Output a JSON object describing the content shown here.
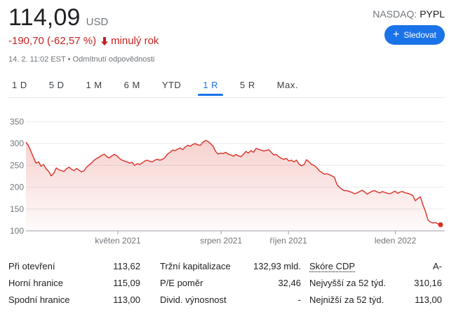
{
  "quote": {
    "price": "114,09",
    "currency": "USD",
    "change": "-190,70 (-62,57 %)",
    "change_period": "minulý rok",
    "timestamp": "14. 2. 11:02 EST",
    "disclaimer": "Odmítnutí odpovědnosti",
    "exchange_prefix": "NASDAQ:",
    "symbol": "PYPL",
    "follow_label": "Sledovat",
    "negative_color": "#c5221f",
    "accent_color": "#1a73e8"
  },
  "ranges": {
    "tabs": [
      "1 D",
      "5 D",
      "1 M",
      "6 M",
      "YTD",
      "1 R",
      "5 R",
      "Max."
    ],
    "active": "1 R"
  },
  "chart_data": {
    "type": "area",
    "yticks": [
      350,
      300,
      250,
      200,
      150,
      100
    ],
    "ylim": [
      100,
      350
    ],
    "xticks": [
      {
        "label": "květen 2021",
        "x": 0.221
      },
      {
        "label": "srpen 2021",
        "x": 0.469
      },
      {
        "label": "říjen 2021",
        "x": 0.631
      },
      {
        "label": "leden 2022",
        "x": 0.888
      }
    ],
    "line_color": "#d93025",
    "values": [
      303,
      295,
      282,
      268,
      255,
      258,
      248,
      252,
      242,
      236,
      226,
      232,
      244,
      240,
      238,
      236,
      242,
      246,
      241,
      238,
      243,
      239,
      235,
      238,
      246,
      251,
      256,
      262,
      266,
      269,
      273,
      276,
      270,
      267,
      272,
      275,
      272,
      266,
      262,
      260,
      258,
      255,
      257,
      250,
      254,
      252,
      256,
      260,
      262,
      259,
      258,
      262,
      264,
      262,
      264,
      268,
      276,
      280,
      285,
      284,
      287,
      290,
      286,
      292,
      296,
      294,
      298,
      300,
      297,
      296,
      303,
      307,
      305,
      300,
      294,
      282,
      276,
      278,
      277,
      280,
      276,
      274,
      271,
      275,
      272,
      270,
      275,
      282,
      278,
      284,
      280,
      289,
      287,
      285,
      283,
      284,
      286,
      280,
      274,
      275,
      270,
      266,
      264,
      266,
      260,
      262,
      258,
      262,
      253,
      249,
      252,
      263,
      258,
      252,
      250,
      245,
      238,
      234,
      230,
      231,
      229,
      226,
      223,
      206,
      200,
      195,
      192,
      192,
      190,
      188,
      185,
      187,
      190,
      193,
      189,
      184,
      188,
      191,
      192,
      189,
      187,
      190,
      188,
      186,
      185,
      188,
      191,
      186,
      189,
      190,
      187,
      186,
      184,
      181,
      169,
      174,
      178,
      160,
      145,
      125,
      120,
      118,
      119,
      116,
      114
    ]
  },
  "stats": {
    "rows": [
      [
        {
          "label": "Při otevření",
          "value": "113,62"
        },
        {
          "label": "Tržní kapitalizace",
          "value": "132,93 mld."
        },
        {
          "label": "Skóre CDP",
          "value": "A-"
        }
      ],
      [
        {
          "label": "Horní hranice",
          "value": "115,09"
        },
        {
          "label": "P/E poměr",
          "value": "32,46"
        },
        {
          "label": "Nejvyšší za 52 týd.",
          "value": "310,16"
        }
      ],
      [
        {
          "label": "Spodní hranice",
          "value": "113,00"
        },
        {
          "label": "Divid. výnosnost",
          "value": "-"
        },
        {
          "label": "Nejnižší za 52 týd.",
          "value": "113,00"
        }
      ]
    ]
  }
}
